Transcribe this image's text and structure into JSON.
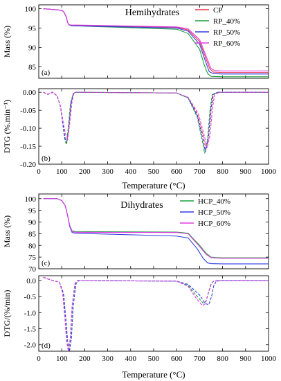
{
  "chart_data": [
    {
      "panel": "(a)",
      "type": "line",
      "title": "Hemihydrates",
      "xlabel": "",
      "ylabel": "Mass (%)",
      "xlim": [
        0,
        1000
      ],
      "ylim": [
        82,
        101
      ],
      "yticks": [
        85,
        90,
        95,
        100
      ],
      "xticks": [],
      "legend_position": "top-right",
      "series": [
        {
          "name": "CP",
          "color": "#e8334a",
          "dashed": false,
          "x": [
            20,
            100,
            110,
            120,
            125,
            130,
            140,
            600,
            650,
            700,
            725,
            745,
            760,
            800,
            1000
          ],
          "y": [
            100,
            99.6,
            99.1,
            97.8,
            96.6,
            95.9,
            95.7,
            95.2,
            94.5,
            91.5,
            87.5,
            84.4,
            83.6,
            83.5,
            83.5
          ]
        },
        {
          "name": "RP_40%",
          "color": "#1a9e3a",
          "dashed": false,
          "x": [
            20,
            100,
            110,
            120,
            125,
            130,
            140,
            600,
            650,
            700,
            720,
            735,
            750,
            800,
            1000
          ],
          "y": [
            100,
            99.6,
            99.1,
            97.8,
            96.6,
            95.9,
            95.6,
            94.7,
            93.6,
            89.5,
            85.5,
            83.2,
            82.5,
            82.4,
            82.4
          ]
        },
        {
          "name": "RP_50%",
          "color": "#2f3de0",
          "dashed": false,
          "x": [
            20,
            100,
            110,
            120,
            125,
            130,
            140,
            600,
            650,
            700,
            725,
            742,
            760,
            800,
            1000
          ],
          "y": [
            100,
            99.6,
            99.1,
            97.8,
            96.6,
            95.9,
            95.6,
            95.0,
            94.2,
            90.8,
            86.5,
            83.7,
            83.2,
            83.1,
            83.1
          ]
        },
        {
          "name": "RP_60%",
          "color": "#e03be0",
          "dashed": false,
          "x": [
            20,
            100,
            110,
            120,
            125,
            130,
            140,
            600,
            650,
            700,
            730,
            750,
            765,
            800,
            1000
          ],
          "y": [
            100,
            99.6,
            99.1,
            97.8,
            96.6,
            95.9,
            95.8,
            95.3,
            94.8,
            92.0,
            87.5,
            84.5,
            84.0,
            83.9,
            83.9
          ]
        }
      ]
    },
    {
      "panel": "(b)",
      "type": "line",
      "title": "",
      "xlabel": "Temperature (°C)",
      "ylabel": "DTG (%.min⁻¹)",
      "xlim": [
        0,
        1000
      ],
      "ylim": [
        -0.2,
        0.01
      ],
      "yticks": [
        0.0,
        -0.05,
        -0.1,
        -0.15,
        -0.2
      ],
      "ytick_labels": [
        "0.00",
        "-0.05",
        "-0.10",
        "-0.15",
        "-0.20"
      ],
      "xticks": [
        0,
        100,
        200,
        300,
        400,
        500,
        600,
        700,
        800,
        900,
        1000
      ],
      "series": [
        {
          "name": "CP",
          "color": "#e8334a",
          "dashed": true,
          "x": [
            20,
            40,
            60,
            80,
            95,
            105,
            115,
            122,
            130,
            140,
            150,
            160,
            600,
            650,
            690,
            715,
            728,
            740,
            750,
            760,
            780,
            1000
          ],
          "y": [
            0,
            -0.006,
            0,
            -0.01,
            -0.04,
            -0.09,
            -0.13,
            -0.14,
            -0.1,
            -0.03,
            -0.004,
            0,
            -0.002,
            -0.015,
            -0.06,
            -0.12,
            -0.16,
            -0.12,
            -0.05,
            -0.006,
            0,
            0
          ]
        },
        {
          "name": "RP_40%",
          "color": "#1a9e3a",
          "dashed": true,
          "x": [
            20,
            40,
            60,
            80,
            95,
            105,
            113,
            120,
            128,
            138,
            150,
            160,
            600,
            650,
            690,
            710,
            722,
            735,
            745,
            755,
            780,
            1000
          ],
          "y": [
            0,
            -0.006,
            0,
            -0.01,
            -0.04,
            -0.09,
            -0.13,
            -0.145,
            -0.1,
            -0.03,
            -0.004,
            0,
            -0.002,
            -0.016,
            -0.07,
            -0.13,
            -0.17,
            -0.13,
            -0.05,
            -0.006,
            0,
            0
          ]
        },
        {
          "name": "RP_50%",
          "color": "#2f3de0",
          "dashed": true,
          "x": [
            20,
            40,
            60,
            80,
            95,
            105,
            115,
            123,
            131,
            141,
            150,
            160,
            600,
            650,
            690,
            712,
            725,
            738,
            748,
            758,
            780,
            1000
          ],
          "y": [
            0,
            -0.006,
            0,
            -0.01,
            -0.04,
            -0.09,
            -0.13,
            -0.135,
            -0.1,
            -0.03,
            -0.004,
            0,
            -0.002,
            -0.015,
            -0.065,
            -0.125,
            -0.165,
            -0.125,
            -0.05,
            -0.006,
            0,
            0
          ]
        },
        {
          "name": "RP_60%",
          "color": "#e03be0",
          "dashed": true,
          "x": [
            20,
            40,
            60,
            80,
            95,
            108,
            118,
            126,
            134,
            144,
            152,
            162,
            600,
            650,
            695,
            720,
            733,
            745,
            755,
            765,
            785,
            1000
          ],
          "y": [
            0,
            -0.006,
            0,
            -0.01,
            -0.04,
            -0.09,
            -0.12,
            -0.13,
            -0.09,
            -0.03,
            -0.004,
            0,
            -0.002,
            -0.014,
            -0.06,
            -0.12,
            -0.155,
            -0.12,
            -0.05,
            -0.006,
            0,
            0
          ]
        }
      ]
    },
    {
      "panel": "(c)",
      "type": "line",
      "title": "Dihydrates",
      "xlabel": "",
      "ylabel": "Mass (%)",
      "xlim": [
        0,
        1000
      ],
      "ylim": [
        70,
        102
      ],
      "yticks": [
        70,
        75,
        80,
        85,
        90,
        95,
        100
      ],
      "xticks": [],
      "legend_position": "top-right",
      "series": [
        {
          "name": "HCP_40%",
          "color": "#1a9e3a",
          "dashed": false,
          "x": [
            20,
            80,
            100,
            115,
            125,
            135,
            145,
            160,
            600,
            650,
            700,
            730,
            750,
            770,
            800,
            1000
          ],
          "y": [
            100,
            100,
            99.2,
            97,
            93,
            88.5,
            86.2,
            85.9,
            85.7,
            85.2,
            80,
            76.5,
            75,
            74.8,
            74.7,
            74.7
          ]
        },
        {
          "name": "HCP_50%",
          "color": "#2f3de0",
          "dashed": false,
          "x": [
            20,
            80,
            100,
            115,
            125,
            135,
            145,
            160,
            600,
            650,
            690,
            715,
            735,
            750,
            800,
            1000
          ],
          "y": [
            100,
            100,
            99.2,
            97,
            93,
            88,
            85.5,
            85.2,
            84,
            83.2,
            78.5,
            74.5,
            72.5,
            72.2,
            72.1,
            72.1
          ]
        },
        {
          "name": "HCP_60%",
          "color": "#e03be0",
          "dashed": false,
          "x": [
            20,
            80,
            100,
            115,
            125,
            135,
            145,
            160,
            600,
            650,
            700,
            730,
            750,
            770,
            800,
            1000
          ],
          "y": [
            100,
            100,
            99.2,
            97,
            93,
            88.5,
            86,
            85.6,
            85.5,
            85,
            79.5,
            76,
            74.8,
            74.6,
            74.5,
            74.5
          ]
        }
      ]
    },
    {
      "panel": "(d)",
      "type": "line",
      "title": "",
      "xlabel": "Temperature (°C)",
      "ylabel": "DTG/(%/min)",
      "xlim": [
        0,
        1000
      ],
      "ylim": [
        -2.2,
        0.15
      ],
      "yticks": [
        0.0,
        -0.5,
        -1.0,
        -1.5,
        -2.0
      ],
      "ytick_labels": [
        "0.0",
        "-0.5",
        "-1.0",
        "-1.5",
        "-2.0"
      ],
      "xticks": [
        0,
        100,
        200,
        300,
        400,
        500,
        600,
        700,
        800,
        900,
        1000
      ],
      "series": [
        {
          "name": "HCP_40%",
          "color": "#1a9e3a",
          "dashed": true,
          "x": [
            20,
            60,
            90,
            105,
            115,
            122,
            130,
            138,
            146,
            158,
            170,
            600,
            650,
            690,
            715,
            728,
            740,
            752,
            762,
            780,
            1000
          ],
          "y": [
            0.1,
            0,
            -0.05,
            -0.4,
            -1.2,
            -1.9,
            -2.2,
            -1.8,
            -0.8,
            -0.1,
            0,
            -0.02,
            -0.15,
            -0.5,
            -0.7,
            -0.65,
            -0.35,
            -0.08,
            -0.02,
            0,
            0
          ]
        },
        {
          "name": "HCP_50%",
          "color": "#2f3de0",
          "dashed": true,
          "x": [
            20,
            60,
            90,
            108,
            118,
            126,
            134,
            142,
            150,
            162,
            175,
            600,
            650,
            700,
            725,
            740,
            752,
            762,
            772,
            790,
            1000
          ],
          "y": [
            0.1,
            0,
            -0.05,
            -0.4,
            -1.2,
            -1.9,
            -2.2,
            -1.8,
            -0.8,
            -0.1,
            0,
            -0.02,
            -0.12,
            -0.45,
            -0.72,
            -0.75,
            -0.5,
            -0.15,
            -0.03,
            0,
            0
          ]
        },
        {
          "name": "HCP_60%",
          "color": "#e03be0",
          "dashed": true,
          "x": [
            20,
            60,
            90,
            104,
            114,
            121,
            129,
            137,
            145,
            157,
            168,
            600,
            650,
            685,
            712,
            725,
            737,
            750,
            760,
            778,
            1000
          ],
          "y": [
            0.1,
            0,
            -0.05,
            -0.4,
            -1.2,
            -1.9,
            -2.2,
            -1.8,
            -0.8,
            -0.1,
            0,
            -0.02,
            -0.18,
            -0.55,
            -0.78,
            -0.72,
            -0.4,
            -0.1,
            -0.02,
            0,
            0
          ]
        }
      ]
    }
  ]
}
